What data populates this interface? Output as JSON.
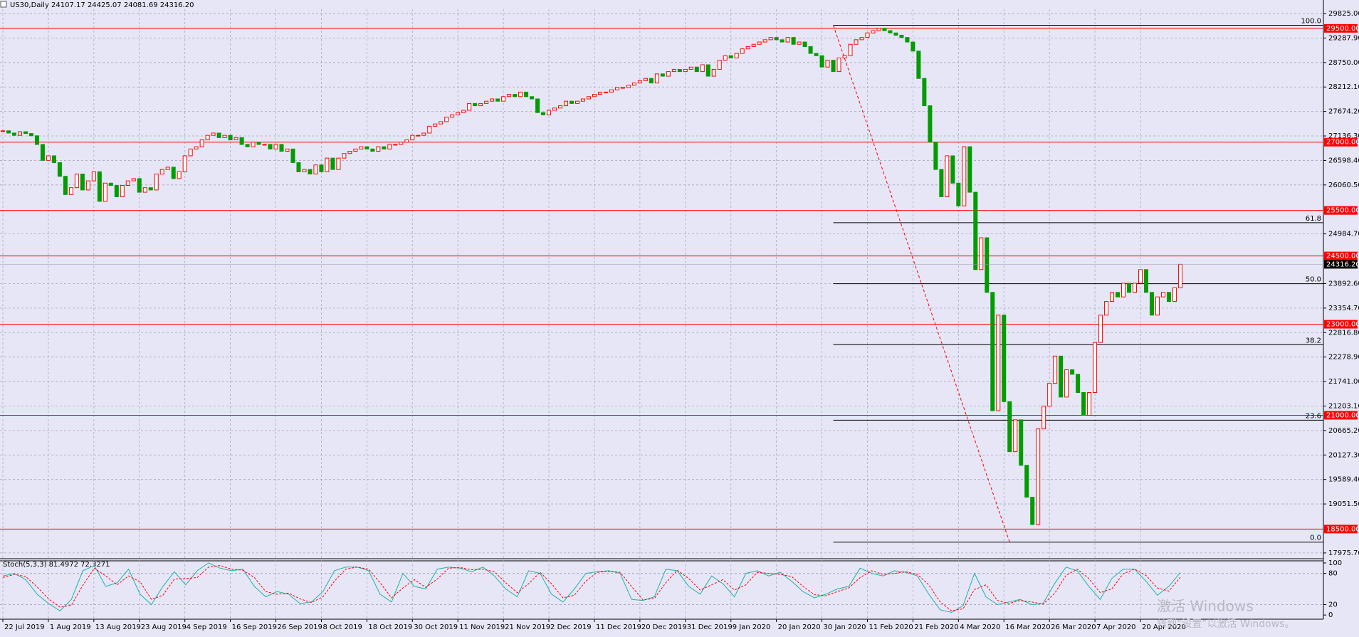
{
  "chart_data": [
    {
      "type": "candlestick",
      "title": "US30,Daily  24107.17 24425.07 24081.69 24316.20",
      "categories": [
        "22 Jul 2019",
        null,
        null,
        null,
        null,
        null,
        null,
        null,
        "1 Aug 2019",
        null,
        null,
        null,
        null,
        null,
        null,
        null,
        "13 Aug 2019",
        null,
        null,
        null,
        null,
        null,
        null,
        null,
        "23 Aug 2019",
        null,
        null,
        null,
        null,
        null,
        null,
        null,
        "4 Sep 2019",
        null,
        null,
        null,
        null,
        null,
        null,
        null,
        "16 Sep 2019",
        null,
        null,
        null,
        null,
        null,
        null,
        null,
        "26 Sep 2019",
        null,
        null,
        null,
        null,
        null,
        null,
        null,
        "8 Oct 2019",
        null,
        null,
        null,
        null,
        null,
        null,
        null,
        "18 Oct 2019",
        null,
        null,
        null,
        null,
        null,
        null,
        null,
        "30 Oct 2019",
        null,
        null,
        null,
        null,
        null,
        null,
        null,
        "11 Nov 2019",
        null,
        null,
        null,
        null,
        null,
        null,
        null,
        "21 Nov 2019",
        null,
        null,
        null,
        null,
        null,
        null,
        null,
        "2 Dec 2019",
        null,
        null,
        null,
        null,
        null,
        null,
        null,
        "11 Dec 2019",
        null,
        null,
        null,
        null,
        null,
        null,
        null,
        "20 Dec 2019",
        null,
        null,
        null,
        null,
        null,
        null,
        null,
        "31 Dec 2019",
        null,
        null,
        null,
        null,
        null,
        null,
        null,
        "9 Jan 2020",
        null,
        null,
        null,
        null,
        null,
        null,
        null,
        "20 Jan 2020",
        null,
        null,
        null,
        null,
        null,
        null,
        null,
        "30 Jan 2020",
        null,
        null,
        null,
        null,
        null,
        null,
        null,
        "11 Feb 2020",
        null,
        null,
        null,
        null,
        null,
        null,
        null,
        "21 Feb 2020",
        null,
        null,
        null,
        null,
        null,
        null,
        null,
        "4 Mar 2020",
        null,
        null,
        null,
        null,
        null,
        null,
        null,
        "16 Mar 2020",
        null,
        null,
        null,
        null,
        null,
        null,
        null,
        "26 Mar 2020",
        null,
        null,
        null,
        null,
        null,
        null,
        null,
        "7 Apr 2020",
        null,
        null,
        null,
        null,
        null,
        null,
        null,
        "20 Apr 2020",
        null,
        null,
        null,
        null,
        null,
        null,
        null
      ],
      "series": [
        {
          "color_up": "#ff0000",
          "color_down": "#009c00",
          "values": [
            27250,
            27200,
            27150,
            27230,
            27190,
            27140,
            26950,
            26600,
            26700,
            26550,
            26250,
            25850,
            26000,
            26300,
            25950,
            26150,
            26350,
            25700,
            26100,
            26050,
            25800,
            26050,
            26150,
            26200,
            25900,
            26000,
            25950,
            26300,
            26400,
            26450,
            26200,
            26350,
            26700,
            26850,
            26900,
            27050,
            27150,
            27200,
            27100,
            27150,
            27050,
            27100,
            26950,
            26900,
            27000,
            26950,
            26950,
            26850,
            26950,
            26800,
            26850,
            26550,
            26350,
            26400,
            26300,
            26500,
            26350,
            26650,
            26400,
            26650,
            26750,
            26800,
            26850,
            26900,
            26850,
            26800,
            26900,
            26850,
            26950,
            26950,
            27000,
            27050,
            27150,
            27150,
            27200,
            27350,
            27400,
            27450,
            27550,
            27600,
            27650,
            27700,
            27850,
            27800,
            27850,
            27900,
            27950,
            27900,
            28000,
            28050,
            28000,
            28100,
            28000,
            27950,
            27650,
            27600,
            27700,
            27750,
            27800,
            27900,
            27850,
            27900,
            27950,
            28000,
            28050,
            28100,
            28100,
            28150,
            28200,
            28200,
            28250,
            28300,
            28350,
            28400,
            28300,
            28500,
            28450,
            28550,
            28600,
            28550,
            28600,
            28650,
            28550,
            28700,
            28450,
            28600,
            28800,
            28900,
            28850,
            28950,
            29050,
            29100,
            29150,
            29200,
            29250,
            29300,
            29250,
            29200,
            29300,
            29150,
            29200,
            29100,
            28950,
            28900,
            28650,
            28800,
            28550,
            28850,
            28900,
            29150,
            29250,
            29300,
            29400,
            29450,
            29500,
            29450,
            29400,
            29350,
            29300,
            29200,
            29000,
            28400,
            27800,
            27000,
            26400,
            25800,
            26700,
            26100,
            25600,
            26900,
            25900,
            24200,
            24900,
            23700,
            21100,
            23200,
            21300,
            20200,
            20900,
            19900,
            19200,
            18600,
            20700,
            21200,
            21700,
            22300,
            21400,
            22000,
            21900,
            21500,
            21000,
            21500,
            22600,
            23200,
            23500,
            23700,
            23600,
            23900,
            23700,
            23900,
            24200,
            23700,
            23200,
            23600,
            23700,
            23500,
            23800,
            24316.2
          ]
        }
      ],
      "ylim": [
        17880,
        29920
      ],
      "yticks": [
        {
          "value": 17975.7,
          "label": "17975.70"
        },
        {
          "value": 19051.5,
          "label": "19051.50"
        },
        {
          "value": 19589.4,
          "label": "19589.40"
        },
        {
          "value": 20127.3,
          "label": "20127.30"
        },
        {
          "value": 20665.2,
          "label": "20665.20"
        },
        {
          "value": 21203.1,
          "label": "21203.10"
        },
        {
          "value": 21741,
          "label": "21741.00"
        },
        {
          "value": 22278.9,
          "label": "22278.90"
        },
        {
          "value": 22816.8,
          "label": "22816.80"
        },
        {
          "value": 23354.7,
          "label": "23354.70"
        },
        {
          "value": 23892.6,
          "label": "23892.60"
        },
        {
          "value": 24984.7,
          "label": "24984.70"
        },
        {
          "value": 26060.5,
          "label": "26060.50"
        },
        {
          "value": 26598.4,
          "label": "26598.40"
        },
        {
          "value": 27136.3,
          "label": "27136.30"
        },
        {
          "value": 27674.2,
          "label": "27674.20"
        },
        {
          "value": 28212.1,
          "label": "28212.10"
        },
        {
          "value": 28750,
          "label": "28750.00"
        },
        {
          "value": 29287.9,
          "label": "29287.90"
        },
        {
          "value": 29825,
          "label": "29825.00"
        }
      ],
      "grid": true,
      "levels": [
        {
          "value": 29500,
          "label": "29500.00"
        },
        {
          "value": 27000,
          "label": "27000.00"
        },
        {
          "value": 25500,
          "label": "25500.00"
        },
        {
          "value": 24500,
          "label": "24500.00"
        },
        {
          "value": 23000,
          "label": "23000.00"
        },
        {
          "value": 21000,
          "label": "21000.00"
        },
        {
          "value": 18500,
          "label": "18500.00"
        }
      ],
      "level_color": "#ff0000",
      "current_price": {
        "value": 24316.2,
        "label": "24316.20"
      },
      "fibonacci": {
        "high": 29568,
        "low": 18213,
        "color": "#000000",
        "levels": [
          {
            "value": 100,
            "label": "100.0"
          },
          {
            "value": 61.8,
            "label": "61.8"
          },
          {
            "value": 50,
            "label": "50.0"
          },
          {
            "value": 38.2,
            "label": "38.2"
          },
          {
            "value": 23.6,
            "label": "23.6"
          },
          {
            "value": 0,
            "label": "0.0"
          }
        ]
      }
    },
    {
      "type": "stochastic",
      "title": "Stoch(5,3,3) 81.4972 72.3271",
      "series": [
        {
          "color": "#20b2aa",
          "values": [
            75,
            80,
            68,
            40,
            22,
            8,
            30,
            85,
            95,
            55,
            62,
            88,
            40,
            20,
            55,
            83,
            58,
            85,
            100,
            90,
            85,
            88,
            55,
            35,
            45,
            40,
            22,
            25,
            45,
            85,
            92,
            92,
            85,
            40,
            25,
            80,
            55,
            50,
            88,
            92,
            90,
            83,
            92,
            75,
            50,
            35,
            85,
            80,
            40,
            25,
            50,
            80,
            83,
            85,
            80,
            30,
            28,
            35,
            88,
            85,
            55,
            40,
            75,
            60,
            35,
            80,
            85,
            75,
            82,
            65,
            45,
            33,
            40,
            50,
            55,
            90,
            80,
            75,
            85,
            82,
            75,
            40,
            10,
            5,
            18,
            80,
            35,
            20,
            25,
            30,
            20,
            22,
            60,
            92,
            85,
            55,
            30,
            70,
            88,
            88,
            65,
            38,
            55,
            81.4972
          ]
        },
        {
          "color": "#ff0000",
          "dashed": true,
          "values": [
            72,
            78,
            74,
            54,
            31,
            15,
            19,
            57,
            90,
            75,
            58,
            75,
            64,
            30,
            38,
            69,
            70,
            72,
            92,
            95,
            88,
            86,
            72,
            45,
            40,
            42,
            31,
            24,
            35,
            65,
            88,
            92,
            88,
            62,
            33,
            52,
            68,
            53,
            69,
            90,
            91,
            87,
            88,
            83,
            62,
            43,
            60,
            82,
            60,
            33,
            38,
            65,
            82,
            84,
            82,
            55,
            29,
            32,
            62,
            86,
            70,
            48,
            58,
            68,
            48,
            58,
            82,
            80,
            78,
            74,
            55,
            39,
            37,
            45,
            52,
            72,
            85,
            78,
            80,
            83,
            78,
            58,
            25,
            8,
            12,
            49,
            58,
            28,
            22,
            28,
            25,
            21,
            41,
            76,
            88,
            70,
            43,
            50,
            79,
            88,
            76,
            52,
            46,
            72.3271
          ]
        }
      ],
      "ylim": [
        -8,
        104
      ],
      "yticks": [
        0,
        20,
        80,
        100
      ]
    }
  ],
  "watermark": {
    "title": "激活 Windows",
    "subtitle": "转到“设置”以激活 Windows。"
  }
}
